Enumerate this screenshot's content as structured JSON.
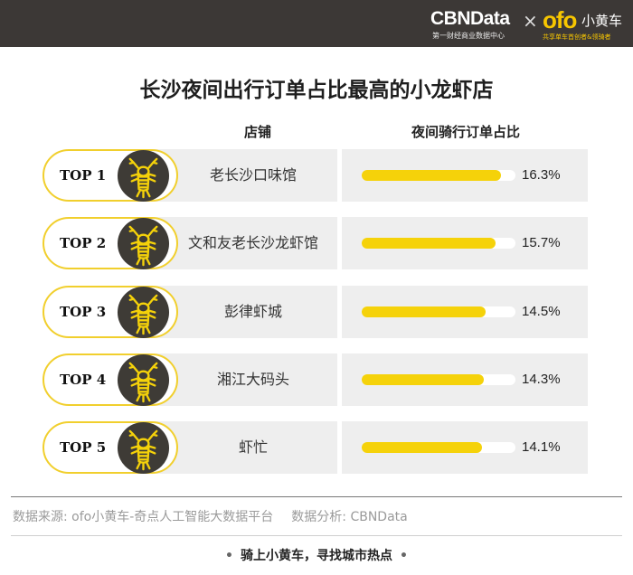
{
  "header": {
    "brand": "CBNData",
    "brand_sub": "第一财经商业数据中心",
    "separator": "×",
    "partner_logo": "ofo",
    "partner_name": "小黄车",
    "partner_sub": "共享单车首创者&领骑者",
    "bar_color": "#3c3836",
    "accent_color": "#f7c600"
  },
  "chart_data": {
    "type": "bar",
    "title": "长沙夜间出行订单占比最高的小龙虾店",
    "column_headers": [
      "店铺",
      "夜间骑行订单占比"
    ],
    "ranks": [
      "TOP 1",
      "TOP 2",
      "TOP 3",
      "TOP 4",
      "TOP 5"
    ],
    "categories": [
      "老长沙口味馆",
      "文和友老长沙龙虾馆",
      "彭律虾城",
      "湘江大码头",
      "虾忙"
    ],
    "values": [
      16.3,
      15.7,
      14.5,
      14.3,
      14.1
    ],
    "value_labels": [
      "16.3%",
      "15.7%",
      "14.5%",
      "14.3%",
      "14.1%"
    ],
    "unit": "%",
    "icon": "crayfish-icon",
    "bar_color": "#f5d20a"
  },
  "footer": {
    "source": "数据来源: ofo小黄车-奇点人工智能大数据平台",
    "analysis": "数据分析: CBNData",
    "slogan": "骑上小黄车，寻找城市热点",
    "bullet": "•"
  }
}
